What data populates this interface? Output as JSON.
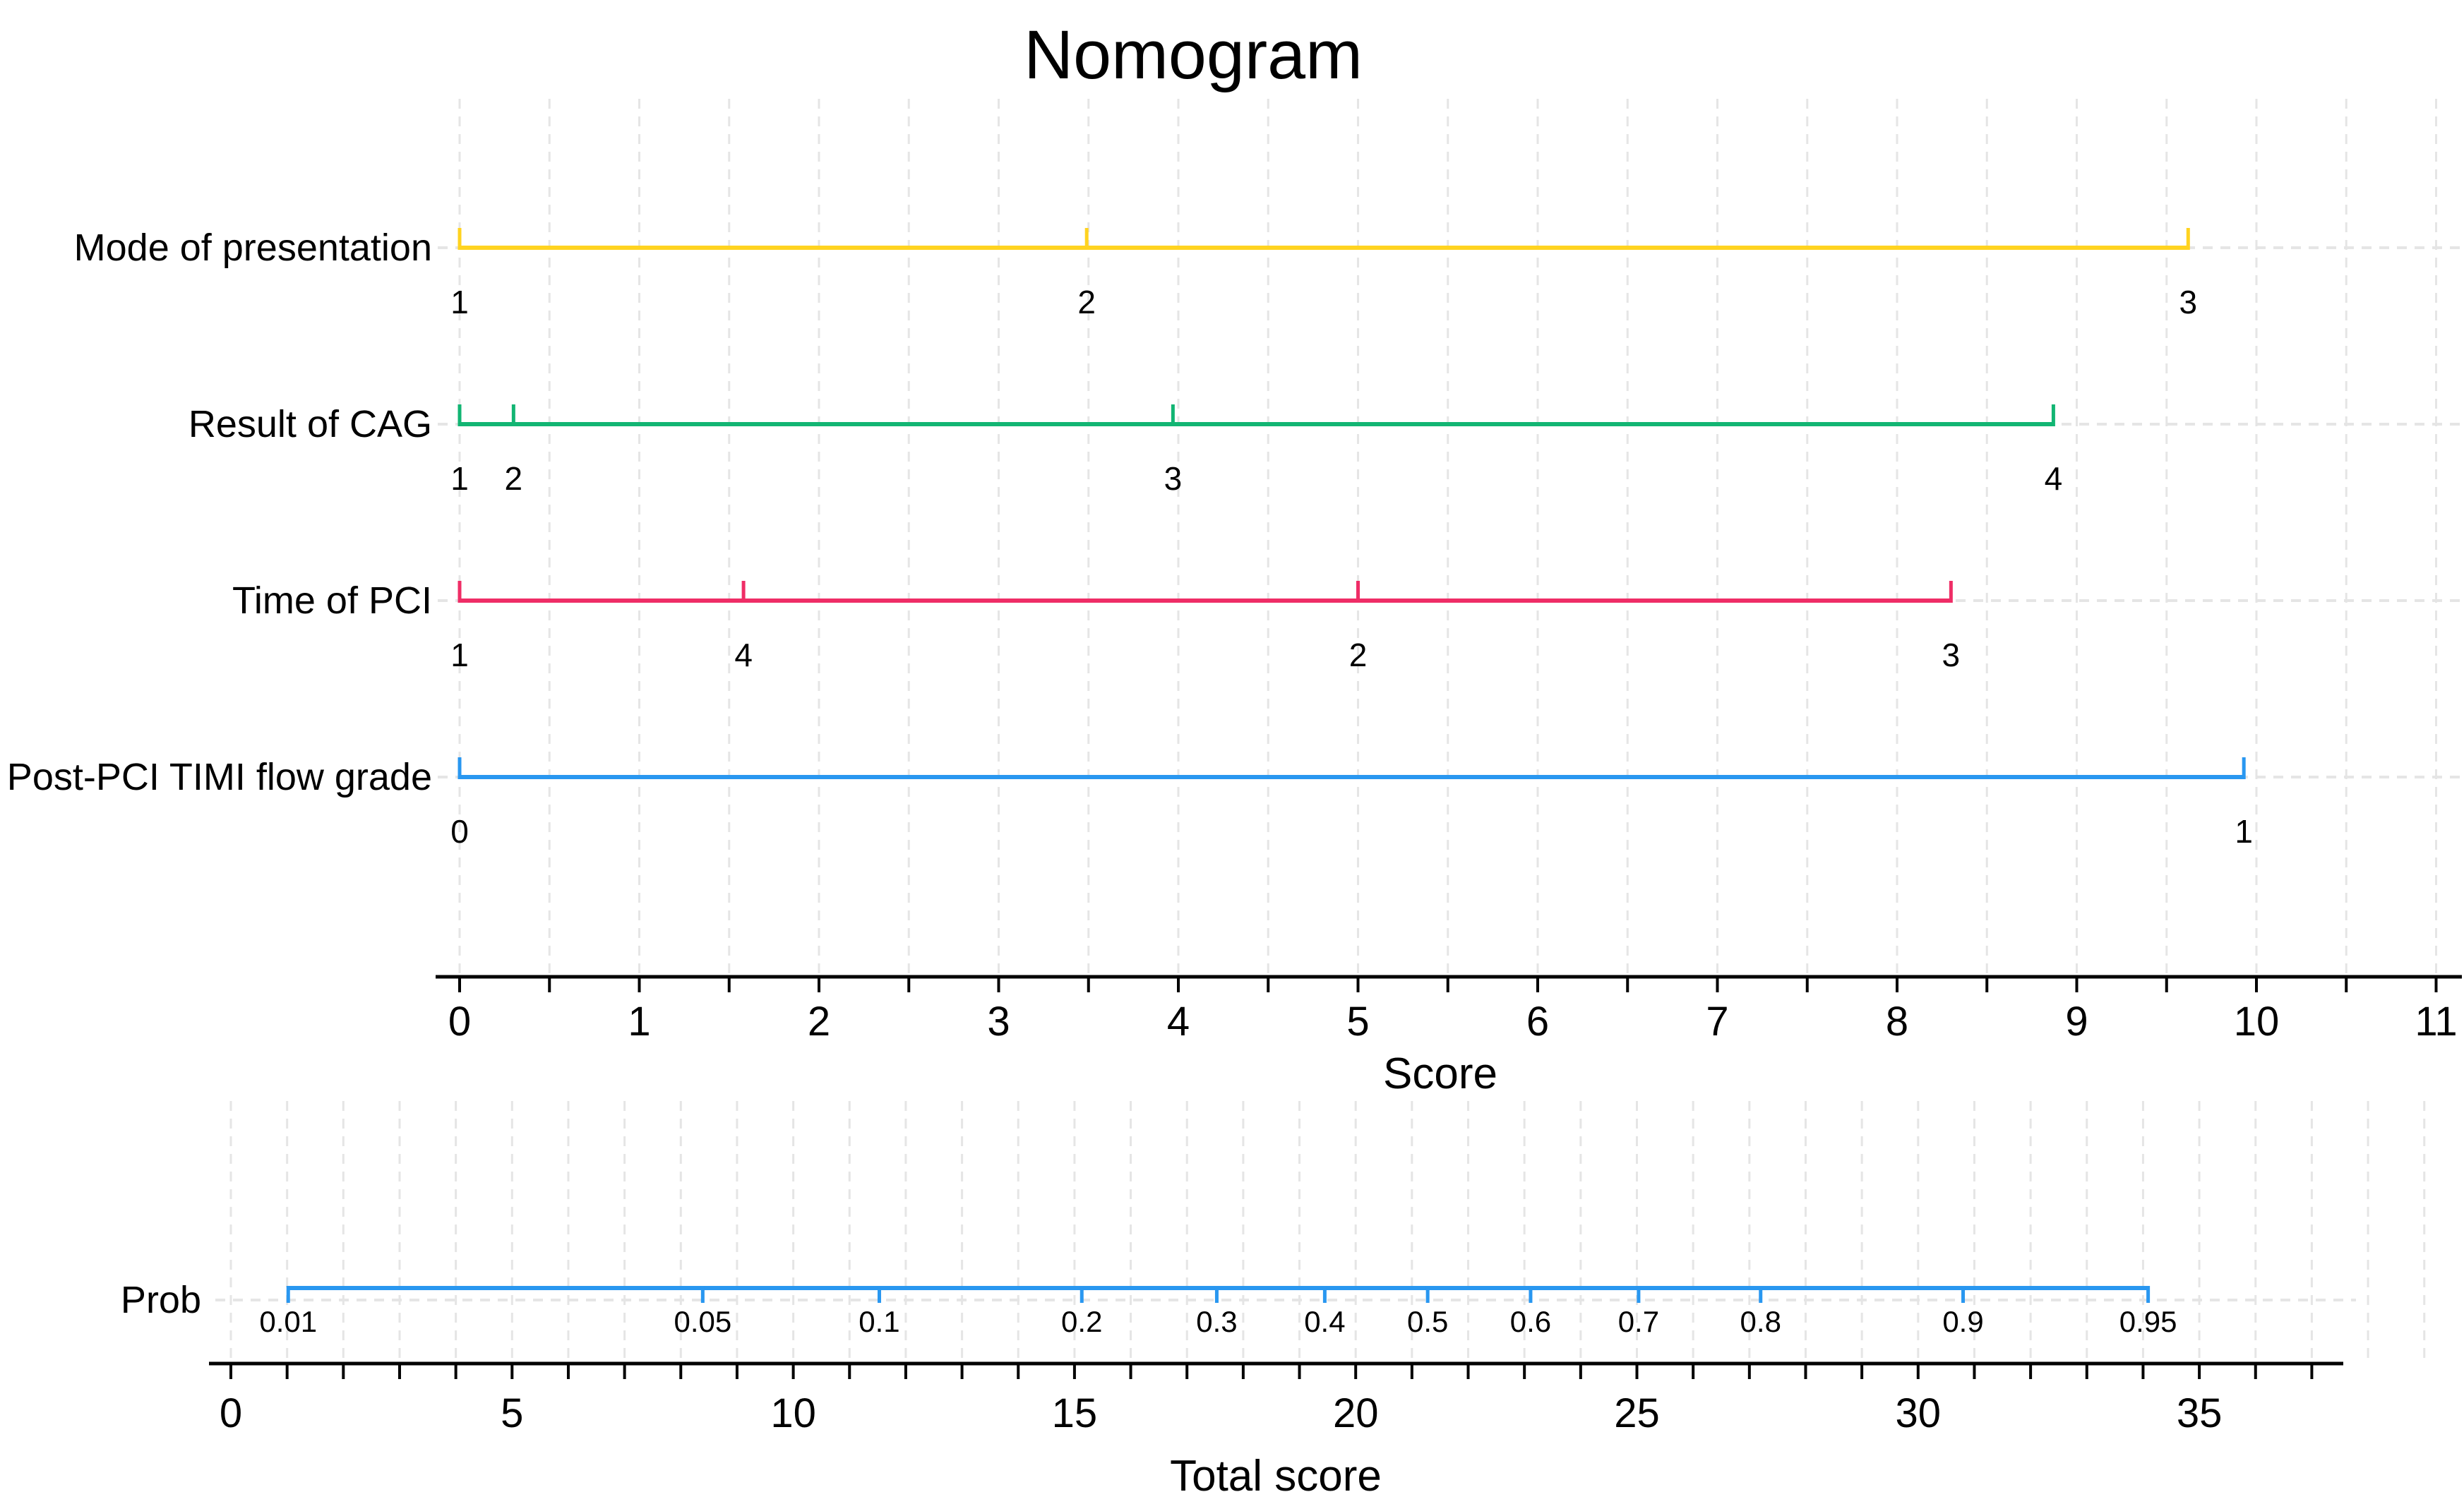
{
  "chart_data": {
    "type": "nomogram",
    "title": "Nomogram",
    "grid": "dashed-light-gray",
    "colors": {
      "yellow": "#FFD320",
      "green": "#12B573",
      "pink": "#EF2D66",
      "blue": "#2997F0",
      "grid": "#E5E5E5",
      "axis": "#000000"
    },
    "score_axis": {
      "label": "Score",
      "min": 0,
      "max": 11,
      "label_step": 1,
      "minor_step": 0.5,
      "tick_labels": [
        "0",
        "1",
        "2",
        "3",
        "4",
        "5",
        "6",
        "7",
        "8",
        "9",
        "10",
        "11"
      ]
    },
    "rows": [
      {
        "label": "Mode of presentation",
        "color_key": "yellow",
        "line_start": 0,
        "line_end": 9.62,
        "ticks": [
          {
            "value": "1",
            "score": 0
          },
          {
            "value": "2",
            "score": 3.49
          },
          {
            "value": "3",
            "score": 9.62
          }
        ]
      },
      {
        "label": "Result of CAG",
        "color_key": "green",
        "line_start": 0,
        "line_end": 8.87,
        "ticks": [
          {
            "value": "1",
            "score": 0
          },
          {
            "value": "2",
            "score": 0.3
          },
          {
            "value": "3",
            "score": 3.97
          },
          {
            "value": "4",
            "score": 8.87
          }
        ]
      },
      {
        "label": "Time of PCI",
        "color_key": "pink",
        "line_start": 0,
        "line_end": 8.3,
        "ticks": [
          {
            "value": "1",
            "score": 0
          },
          {
            "value": "4",
            "score": 1.58
          },
          {
            "value": "2",
            "score": 5.0
          },
          {
            "value": "3",
            "score": 8.3
          }
        ]
      },
      {
        "label": "Post-PCI TIMI flow grade",
        "color_key": "blue",
        "line_start": 0,
        "line_end": 9.93,
        "ticks": [
          {
            "value": "0",
            "score": 0
          },
          {
            "value": "1",
            "score": 9.93
          }
        ]
      }
    ],
    "prob_row": {
      "label": "Prob",
      "color_key": "blue",
      "line_start": 1.02,
      "line_end": 34.09,
      "ticks": [
        {
          "value": "0.01",
          "total_score": 1.02
        },
        {
          "value": "0.05",
          "total_score": 8.39
        },
        {
          "value": "0.1",
          "total_score": 11.53
        },
        {
          "value": "0.2",
          "total_score": 15.13
        },
        {
          "value": "0.3",
          "total_score": 17.53
        },
        {
          "value": "0.4",
          "total_score": 19.45
        },
        {
          "value": "0.5",
          "total_score": 21.28
        },
        {
          "value": "0.6",
          "total_score": 23.11
        },
        {
          "value": "0.7",
          "total_score": 25.03
        },
        {
          "value": "0.8",
          "total_score": 27.2
        },
        {
          "value": "0.9",
          "total_score": 30.8
        },
        {
          "value": "0.95",
          "total_score": 34.09
        }
      ]
    },
    "total_axis": {
      "label": "Total score",
      "min": 0,
      "max": 37,
      "label_step": 5,
      "minor_step": 1,
      "tick_labels": [
        "0",
        "5",
        "10",
        "15",
        "20",
        "25",
        "30",
        "35"
      ]
    }
  }
}
